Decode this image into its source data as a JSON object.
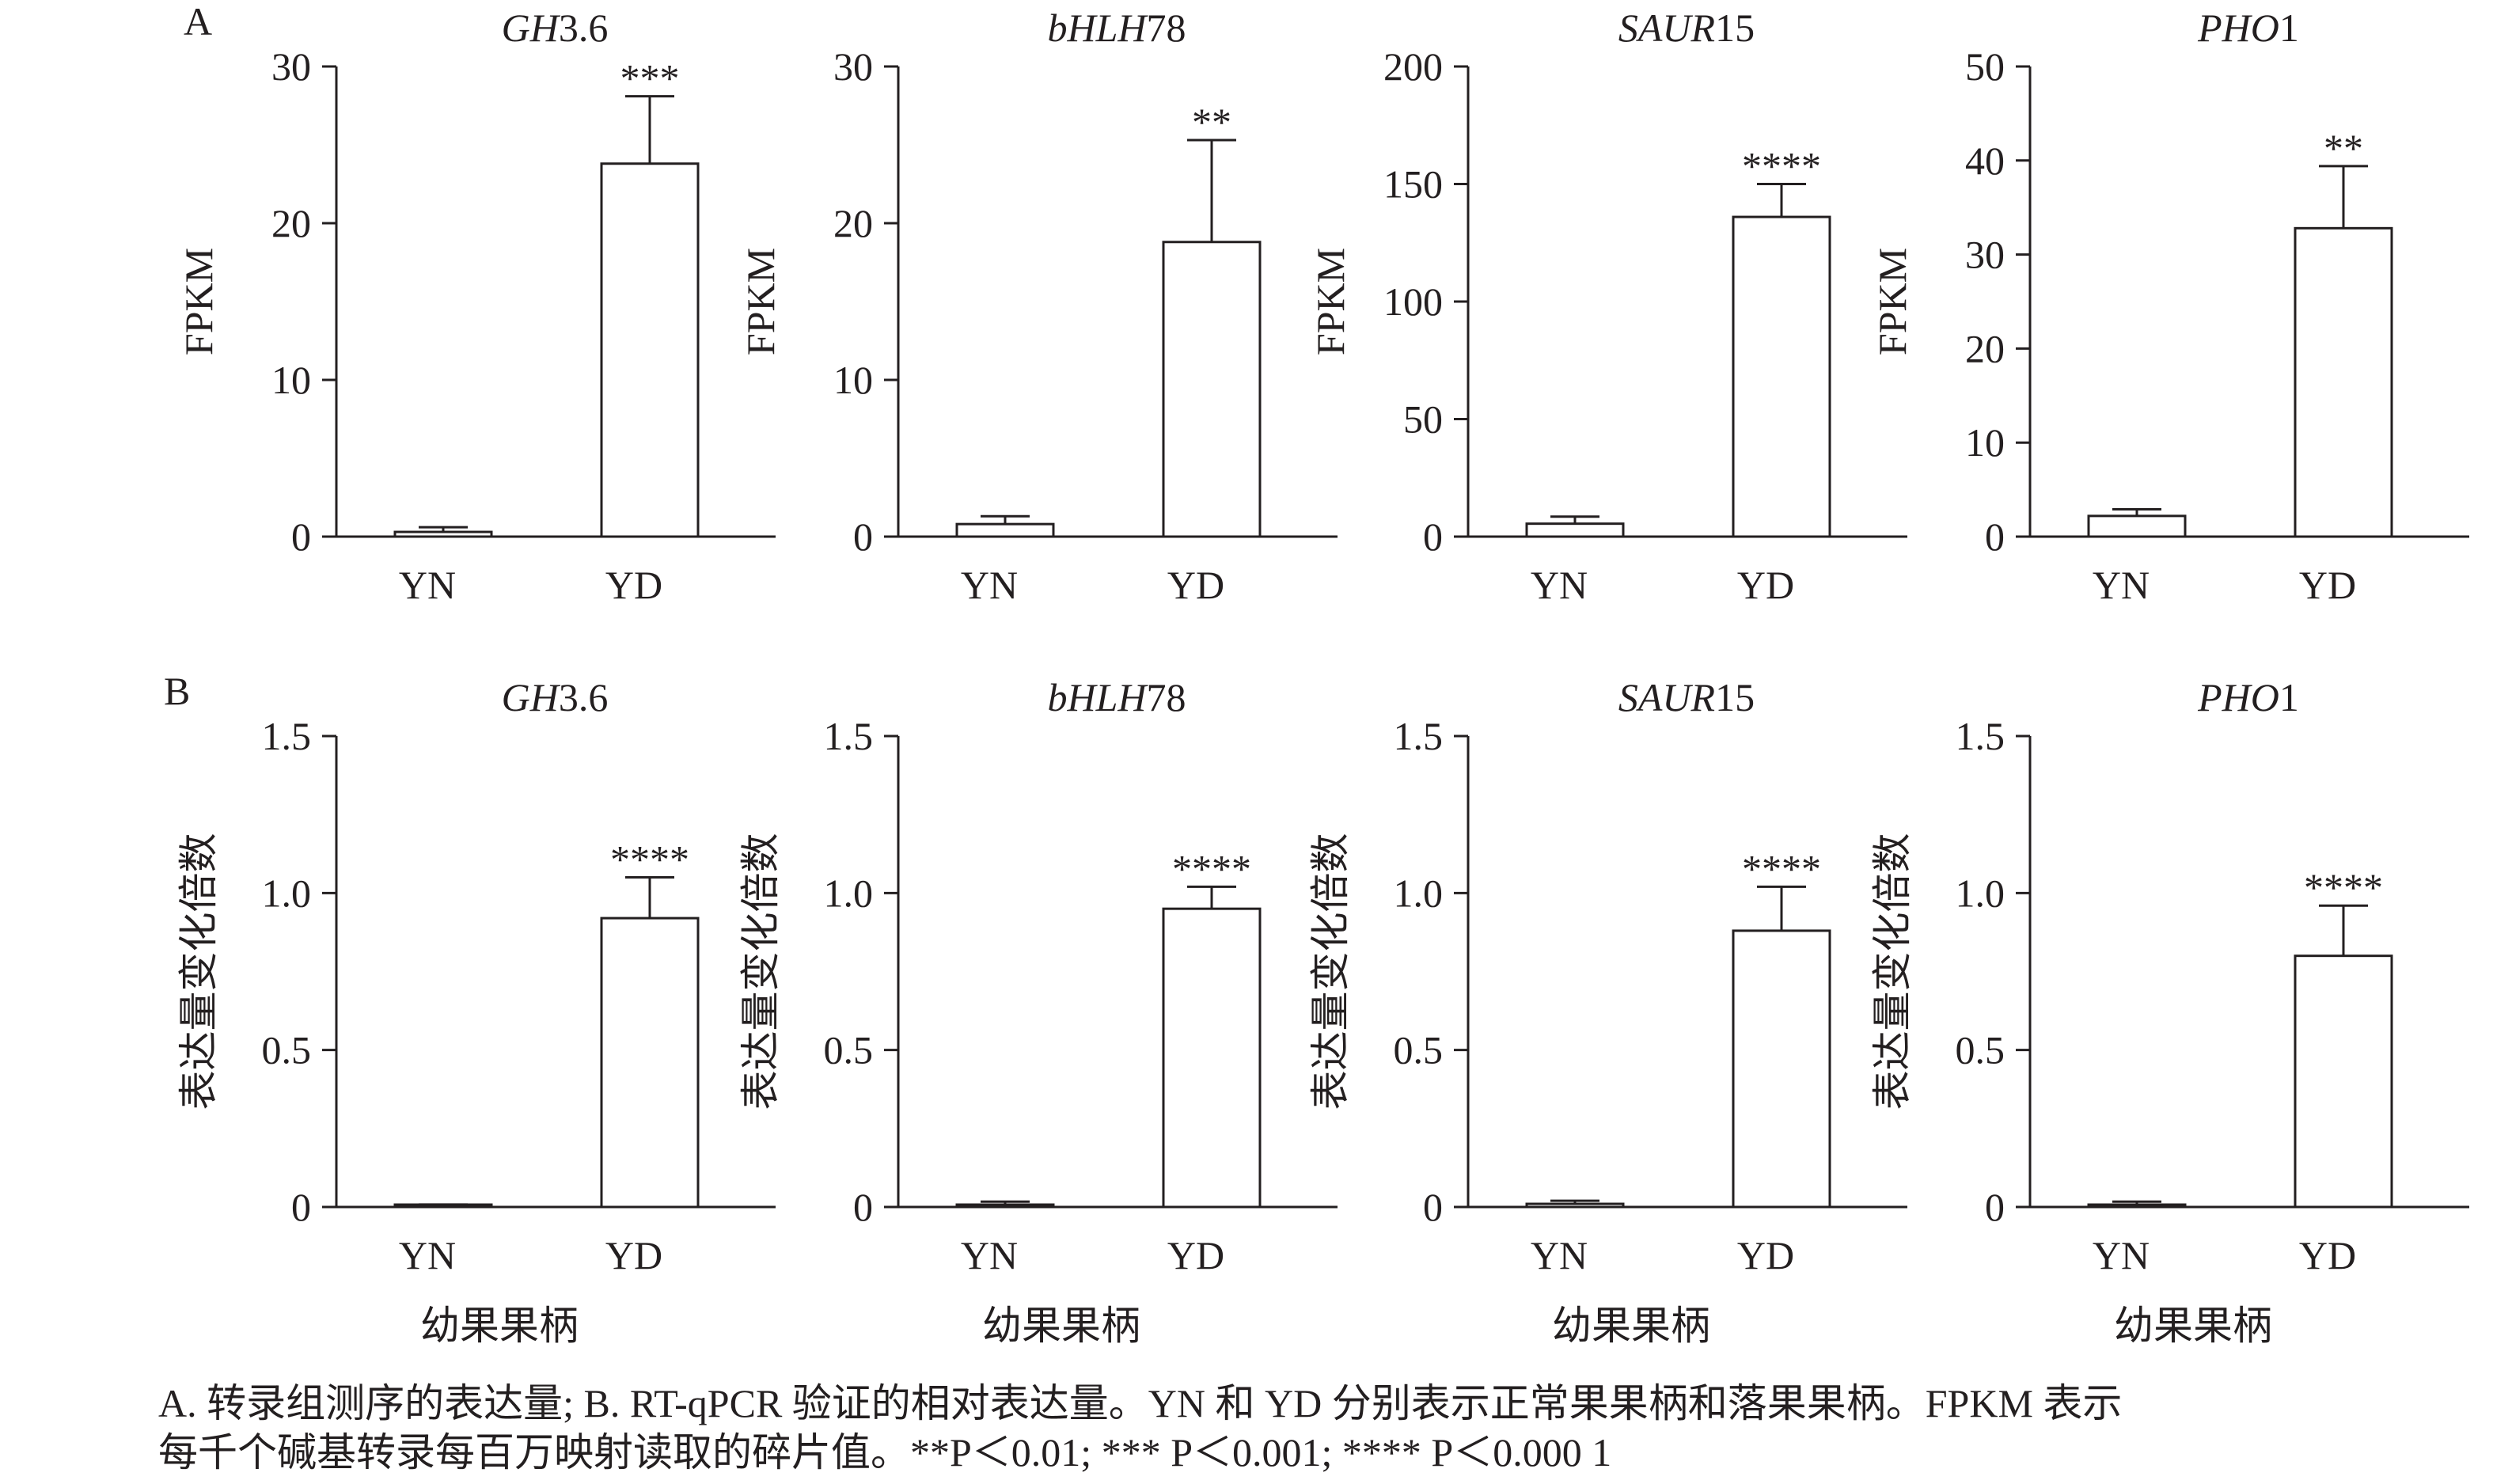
{
  "panel_labels": [
    "A",
    "B"
  ],
  "chart_data": [
    {
      "type": "bar",
      "panel": "A",
      "title_italic": "GH",
      "title_plain": "3.6",
      "ylabel": "FPKM",
      "xlabel": "",
      "categories": [
        "YN",
        "YD"
      ],
      "values": [
        0.3,
        23.8
      ],
      "error": [
        0.3,
        4.3
      ],
      "significance": [
        "",
        "***"
      ],
      "ylim": [
        0,
        30
      ],
      "yticks": [
        0,
        10,
        20,
        30
      ],
      "ytick_labels": [
        "0",
        "10",
        "20",
        "30"
      ]
    },
    {
      "type": "bar",
      "panel": "A",
      "title_italic": "bHLH",
      "title_plain": "78",
      "ylabel": "FPKM",
      "xlabel": "",
      "categories": [
        "YN",
        "YD"
      ],
      "values": [
        0.8,
        18.8
      ],
      "error": [
        0.5,
        6.5
      ],
      "significance": [
        "",
        "**"
      ],
      "ylim": [
        0,
        30
      ],
      "yticks": [
        0,
        10,
        20,
        30
      ],
      "ytick_labels": [
        "0",
        "10",
        "20",
        "30"
      ]
    },
    {
      "type": "bar",
      "panel": "A",
      "title_italic": "SAUR",
      "title_plain": "15",
      "ylabel": "FPKM",
      "xlabel": "",
      "categories": [
        "YN",
        "YD"
      ],
      "values": [
        5.5,
        136
      ],
      "error": [
        3,
        14
      ],
      "significance": [
        "",
        "****"
      ],
      "ylim": [
        0,
        200
      ],
      "yticks": [
        0,
        50,
        100,
        150,
        200
      ],
      "ytick_labels": [
        "0",
        "50",
        "100",
        "150",
        "200"
      ]
    },
    {
      "type": "bar",
      "panel": "A",
      "title_italic": "PHO",
      "title_plain": "1",
      "ylabel": "FPKM",
      "xlabel": "",
      "categories": [
        "YN",
        "YD"
      ],
      "values": [
        2.2,
        32.8
      ],
      "error": [
        0.7,
        6.6
      ],
      "significance": [
        "",
        "**"
      ],
      "ylim": [
        0,
        50
      ],
      "yticks": [
        0,
        10,
        20,
        30,
        40,
        50
      ],
      "ytick_labels": [
        "0",
        "10",
        "20",
        "30",
        "40",
        "50"
      ]
    },
    {
      "type": "bar",
      "panel": "B",
      "title_italic": "GH",
      "title_plain": "3.6",
      "ylabel": "表达量变化倍数",
      "xlabel": "幼果果柄",
      "categories": [
        "YN",
        "YD"
      ],
      "values": [
        0.005,
        0.92
      ],
      "error": [
        0.003,
        0.13
      ],
      "significance": [
        "",
        "****"
      ],
      "ylim": [
        0,
        1.5
      ],
      "yticks": [
        0,
        0.5,
        1.0,
        1.5
      ],
      "ytick_labels": [
        "0",
        "0.5",
        "1.0",
        "1.5"
      ]
    },
    {
      "type": "bar",
      "panel": "B",
      "title_italic": "bHLH",
      "title_plain": "78",
      "ylabel": "表达量变化倍数",
      "xlabel": "幼果果柄",
      "categories": [
        "YN",
        "YD"
      ],
      "values": [
        0.005,
        0.95
      ],
      "error": [
        0.012,
        0.07
      ],
      "significance": [
        "",
        "****"
      ],
      "ylim": [
        0,
        1.5
      ],
      "yticks": [
        0,
        0.5,
        1.0,
        1.5
      ],
      "ytick_labels": [
        "0",
        "0.5",
        "1.0",
        "1.5"
      ]
    },
    {
      "type": "bar",
      "panel": "B",
      "title_italic": "SAUR",
      "title_plain": "15",
      "ylabel": "表达量变化倍数",
      "xlabel": "幼果果柄",
      "categories": [
        "YN",
        "YD"
      ],
      "values": [
        0.01,
        0.88
      ],
      "error": [
        0.01,
        0.14
      ],
      "significance": [
        "",
        "****"
      ],
      "ylim": [
        0,
        1.5
      ],
      "yticks": [
        0,
        0.5,
        1.0,
        1.5
      ],
      "ytick_labels": [
        "0",
        "0.5",
        "1.0",
        "1.5"
      ]
    },
    {
      "type": "bar",
      "panel": "B",
      "title_italic": "PHO",
      "title_plain": "1",
      "ylabel": "表达量变化倍数",
      "xlabel": "幼果果柄",
      "categories": [
        "YN",
        "YD"
      ],
      "values": [
        0.005,
        0.8
      ],
      "error": [
        0.012,
        0.16
      ],
      "significance": [
        "",
        "****"
      ],
      "ylim": [
        0,
        1.5
      ],
      "yticks": [
        0,
        0.5,
        1.0,
        1.5
      ],
      "ytick_labels": [
        "0",
        "0.5",
        "1.0",
        "1.5"
      ]
    }
  ],
  "caption": {
    "line1": "A. 转录组测序的表达量; B. RT-qPCR 验证的相对表达量。YN 和 YD 分别表示正常果果柄和落果果柄。FPKM 表示",
    "line2": "每千个碱基转录每百万映射读取的碎片值。**P＜0.01; *** P＜0.001; **** P＜0.000 1"
  }
}
